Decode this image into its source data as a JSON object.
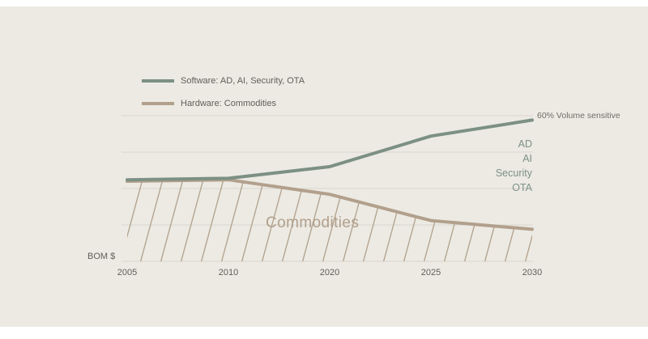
{
  "colors": {
    "background": "#ECEAE3",
    "grid": "#D8D6CE",
    "text": "#5F5E58",
    "note": "#6E6D66",
    "sage": "#7D9184",
    "tan_text": "#B2A08C"
  },
  "legend": {
    "items": [
      {
        "label": "Software: AD, AI, Security, OTA",
        "color": "#7C9083"
      },
      {
        "label": "Hardware: Commodities",
        "color": "#B2A08C"
      }
    ]
  },
  "labels": {
    "volume_note": "60% Volume sensitive",
    "right_stack": [
      "AD",
      "AI",
      "Security",
      "OTA"
    ],
    "area_label": "Commodities",
    "axis_label": "BOM $"
  },
  "chart_data": {
    "type": "line",
    "x": [
      "2005",
      "2010",
      "2020",
      "2025",
      "2030"
    ],
    "ylabel": "BOM $",
    "ylim": [
      0,
      100
    ],
    "gridlines": [
      0,
      25,
      50,
      75,
      100
    ],
    "grid": true,
    "legend_position": "top-left",
    "series": [
      {
        "name": "Software: AD, AI, Security, OTA",
        "color": "#7C9083",
        "values": [
          56,
          57,
          65,
          86,
          97
        ]
      },
      {
        "name": "Hardware: Commodities",
        "color": "#B2A08C",
        "values": [
          55,
          56,
          46,
          28,
          22
        ],
        "hatched_area_below": true,
        "area_label": "Commodities"
      }
    ]
  }
}
